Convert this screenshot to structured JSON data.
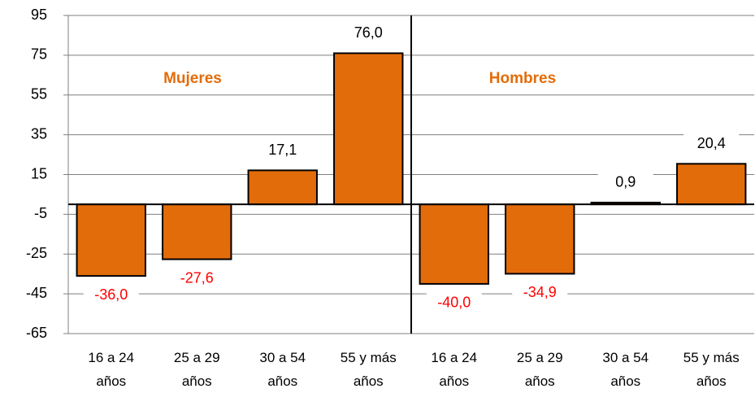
{
  "chart_data": {
    "type": "bar",
    "categories": [
      "16 a 24 años",
      "25 a 29 años",
      "30 a 54 años",
      "55 y más años",
      "16 a 24 años",
      "25 a 29 años",
      "30 a 54 años",
      "55 y más años"
    ],
    "values": [
      -36.0,
      -27.6,
      17.1,
      76.0,
      -40.0,
      -34.9,
      0.9,
      20.4
    ],
    "value_labels": [
      "-36,0",
      "-27,6",
      "17,1",
      "76,0",
      "-40,0",
      "-34,9",
      "0,9",
      "20,4"
    ],
    "color": "#e36c0a",
    "ylim": [
      -65,
      95
    ],
    "yticks": [
      95,
      75,
      55,
      35,
      15,
      -5,
      -25,
      -45,
      -65
    ],
    "grid": true,
    "annotations": [
      "Mujeres",
      "Hombres"
    ]
  }
}
